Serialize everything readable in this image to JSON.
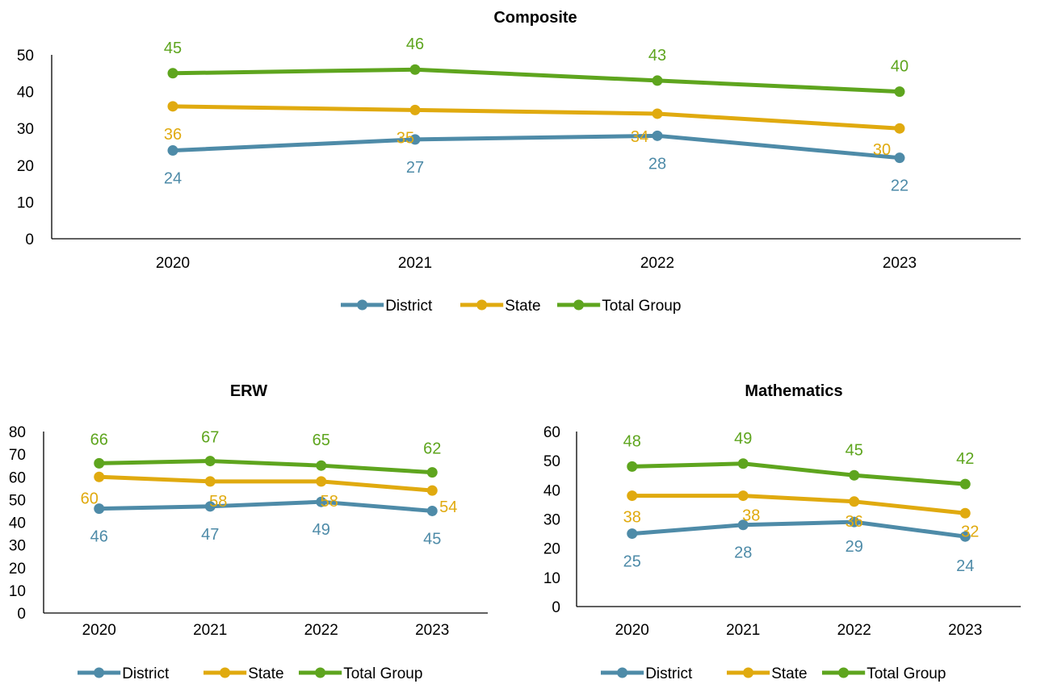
{
  "colors": {
    "District": "#4E8BA8",
    "State": "#E0AA0F",
    "Total Group": "#5EA51E"
  },
  "chart_data": [
    {
      "type": "line",
      "title": "Composite",
      "categories": [
        "2020",
        "2021",
        "2022",
        "2023"
      ],
      "ylim": [
        0,
        50
      ],
      "yticks": [
        "0",
        "10",
        "20",
        "30",
        "40",
        "50"
      ],
      "legend_position": "bottom",
      "series": [
        {
          "name": "District",
          "values": [
            24,
            27,
            28,
            22
          ],
          "labels": [
            "24",
            "27",
            "28",
            "22"
          ]
        },
        {
          "name": "State",
          "values": [
            36,
            35,
            34,
            30
          ],
          "labels": [
            "36",
            "35",
            "34",
            "30"
          ]
        },
        {
          "name": "Total Group",
          "values": [
            45,
            46,
            43,
            40
          ],
          "labels": [
            "45",
            "46",
            "43",
            "40"
          ]
        }
      ]
    },
    {
      "type": "line",
      "title": "ERW",
      "categories": [
        "2020",
        "2021",
        "2022",
        "2023"
      ],
      "ylim": [
        0,
        80
      ],
      "yticks": [
        "0",
        "10",
        "20",
        "30",
        "40",
        "50",
        "60",
        "70",
        "80"
      ],
      "legend_position": "bottom",
      "series": [
        {
          "name": "District",
          "values": [
            46,
            47,
            49,
            45
          ],
          "labels": [
            "46",
            "47",
            "49",
            "45"
          ]
        },
        {
          "name": "State",
          "values": [
            60,
            58,
            58,
            54
          ],
          "labels": [
            "60",
            "58",
            "58",
            "54"
          ]
        },
        {
          "name": "Total Group",
          "values": [
            66,
            67,
            65,
            62
          ],
          "labels": [
            "66",
            "67",
            "65",
            "62"
          ]
        }
      ]
    },
    {
      "type": "line",
      "title": "Mathematics",
      "categories": [
        "2020",
        "2021",
        "2022",
        "2023"
      ],
      "ylim": [
        0,
        60
      ],
      "yticks": [
        "0",
        "10",
        "20",
        "30",
        "40",
        "50",
        "60"
      ],
      "legend_position": "bottom",
      "series": [
        {
          "name": "District",
          "values": [
            25,
            28,
            29,
            24
          ],
          "labels": [
            "25",
            "28",
            "29",
            "24"
          ]
        },
        {
          "name": "State",
          "values": [
            38,
            38,
            36,
            32
          ],
          "labels": [
            "38",
            "38",
            "36",
            "32"
          ]
        },
        {
          "name": "Total Group",
          "values": [
            48,
            49,
            45,
            42
          ],
          "labels": [
            "48",
            "49",
            "45",
            "42"
          ]
        }
      ]
    }
  ]
}
